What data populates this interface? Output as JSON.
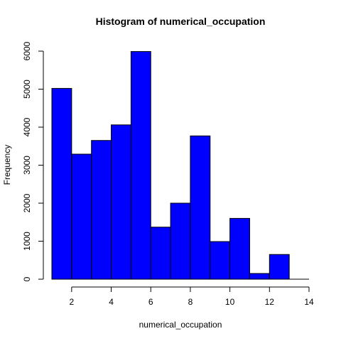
{
  "chart_data": {
    "type": "bar",
    "subtype": "histogram",
    "title": "Histogram of numerical_occupation",
    "xlabel": "numerical_occupation",
    "ylabel": "Frequency",
    "bins": [
      {
        "x0": 1,
        "x1": 2,
        "value": 5020
      },
      {
        "x0": 2,
        "x1": 3,
        "value": 3290
      },
      {
        "x0": 3,
        "x1": 4,
        "value": 3650
      },
      {
        "x0": 4,
        "x1": 5,
        "value": 4060
      },
      {
        "x0": 5,
        "x1": 6,
        "value": 5990
      },
      {
        "x0": 6,
        "x1": 7,
        "value": 1370
      },
      {
        "x0": 7,
        "x1": 8,
        "value": 2000
      },
      {
        "x0": 8,
        "x1": 9,
        "value": 3770
      },
      {
        "x0": 9,
        "x1": 10,
        "value": 990
      },
      {
        "x0": 10,
        "x1": 11,
        "value": 1600
      },
      {
        "x0": 11,
        "x1": 12,
        "value": 150
      },
      {
        "x0": 12,
        "x1": 13,
        "value": 650
      },
      {
        "x0": 13,
        "x1": 14,
        "value": 0
      }
    ],
    "xlim": [
      1,
      14
    ],
    "ylim": [
      0,
      6000
    ],
    "xticks": [
      2,
      4,
      6,
      8,
      10,
      12,
      14
    ],
    "yticks": [
      0,
      1000,
      2000,
      3000,
      4000,
      5000,
      6000
    ],
    "xtick_labels": [
      "2",
      "4",
      "6",
      "8",
      "10",
      "12",
      "14"
    ],
    "ytick_labels": [
      "0",
      "1000",
      "2000",
      "3000",
      "4000",
      "5000",
      "6000"
    ],
    "bar_color": "#0000ff",
    "edge_color": "#000000",
    "grid": false,
    "legend": "none"
  }
}
